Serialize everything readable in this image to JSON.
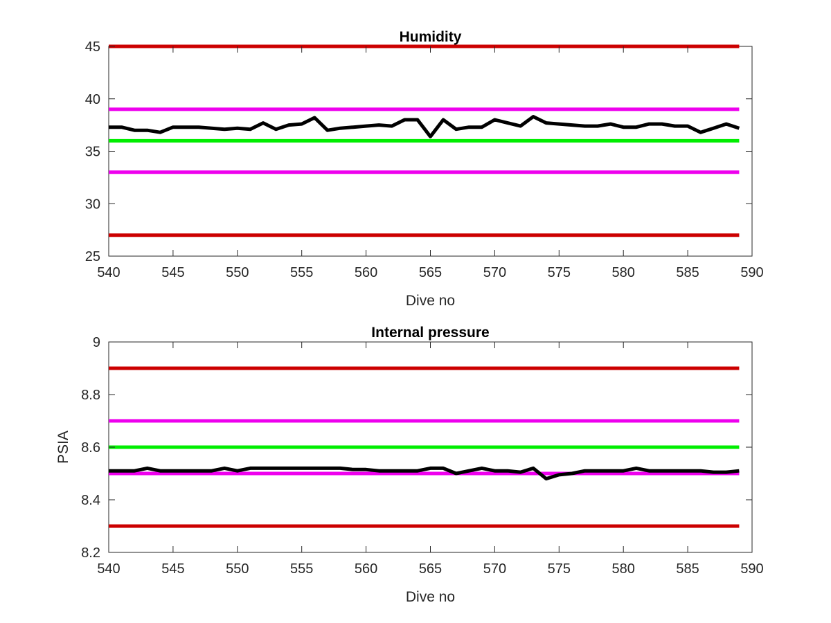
{
  "chart_data": [
    {
      "type": "line",
      "title": "Humidity",
      "xlabel": "Dive no",
      "ylabel": "",
      "xlim": [
        540,
        590
      ],
      "ylim": [
        25,
        45
      ],
      "xticks": [
        540,
        545,
        550,
        555,
        560,
        565,
        570,
        575,
        580,
        585,
        590
      ],
      "yticks": [
        25,
        30,
        35,
        40,
        45
      ],
      "grid": false,
      "legend": "none",
      "thresholds": [
        {
          "y": 45,
          "color": "#cc0000"
        },
        {
          "y": 39,
          "color": "#ee00ee"
        },
        {
          "y": 36,
          "color": "#00ee00"
        },
        {
          "y": 33,
          "color": "#ee00ee"
        },
        {
          "y": 27,
          "color": "#cc0000"
        }
      ],
      "series": [
        {
          "color": "#000000",
          "x": [
            540,
            541,
            542,
            543,
            544,
            545,
            546,
            547,
            548,
            549,
            550,
            551,
            552,
            553,
            554,
            555,
            556,
            557,
            558,
            559,
            560,
            561,
            562,
            563,
            564,
            565,
            566,
            567,
            568,
            569,
            570,
            571,
            572,
            573,
            574,
            575,
            576,
            577,
            578,
            579,
            580,
            581,
            582,
            583,
            584,
            585,
            586,
            587,
            588,
            589
          ],
          "values": [
            37.3,
            37.3,
            37.0,
            37.0,
            36.8,
            37.3,
            37.3,
            37.3,
            37.2,
            37.1,
            37.2,
            37.1,
            37.7,
            37.1,
            37.5,
            37.6,
            38.2,
            37.0,
            37.2,
            37.3,
            37.4,
            37.5,
            37.4,
            38.0,
            38.0,
            36.4,
            38.0,
            37.1,
            37.3,
            37.3,
            38.0,
            37.7,
            37.4,
            38.3,
            37.7,
            37.6,
            37.5,
            37.4,
            37.4,
            37.6,
            37.3,
            37.3,
            37.6,
            37.6,
            37.4,
            37.4,
            36.8,
            37.2,
            37.6,
            37.2
          ]
        }
      ]
    },
    {
      "type": "line",
      "title": "Internal pressure",
      "xlabel": "Dive no",
      "ylabel": "PSIA",
      "xlim": [
        540,
        590
      ],
      "ylim": [
        8.2,
        9.0
      ],
      "xticks": [
        540,
        545,
        550,
        555,
        560,
        565,
        570,
        575,
        580,
        585,
        590
      ],
      "yticks": [
        8.2,
        8.4,
        8.6,
        8.8,
        9.0
      ],
      "ytick_labels": [
        "8.2",
        "8.4",
        "8.6",
        "8.8",
        "9"
      ],
      "grid": false,
      "legend": "none",
      "thresholds": [
        {
          "y": 8.9,
          "color": "#cc0000"
        },
        {
          "y": 8.7,
          "color": "#ee00ee"
        },
        {
          "y": 8.6,
          "color": "#00ee00"
        },
        {
          "y": 8.5,
          "color": "#ee00ee"
        },
        {
          "y": 8.3,
          "color": "#cc0000"
        }
      ],
      "series": [
        {
          "color": "#000000",
          "x": [
            540,
            541,
            542,
            543,
            544,
            545,
            546,
            547,
            548,
            549,
            550,
            551,
            552,
            553,
            554,
            555,
            556,
            557,
            558,
            559,
            560,
            561,
            562,
            563,
            564,
            565,
            566,
            567,
            568,
            569,
            570,
            571,
            572,
            573,
            574,
            575,
            576,
            577,
            578,
            579,
            580,
            581,
            582,
            583,
            584,
            585,
            586,
            587,
            588,
            589
          ],
          "values": [
            8.51,
            8.51,
            8.51,
            8.52,
            8.51,
            8.51,
            8.51,
            8.51,
            8.51,
            8.52,
            8.51,
            8.52,
            8.52,
            8.52,
            8.52,
            8.52,
            8.52,
            8.52,
            8.52,
            8.515,
            8.515,
            8.51,
            8.51,
            8.51,
            8.51,
            8.52,
            8.52,
            8.5,
            8.51,
            8.52,
            8.51,
            8.51,
            8.505,
            8.52,
            8.48,
            8.495,
            8.5,
            8.51,
            8.51,
            8.51,
            8.51,
            8.52,
            8.51,
            8.51,
            8.51,
            8.51,
            8.51,
            8.505,
            8.505,
            8.51
          ]
        }
      ]
    }
  ]
}
